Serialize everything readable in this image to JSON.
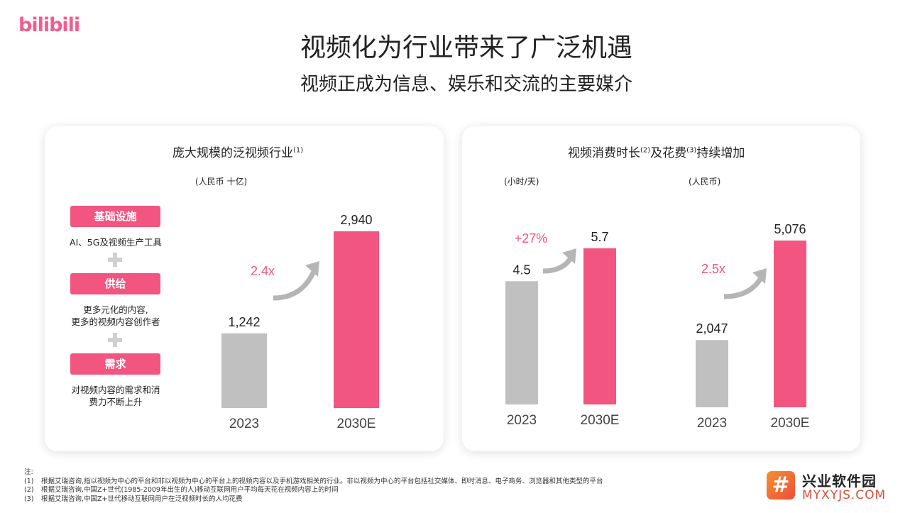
{
  "header": {
    "logo": "bilibili",
    "title": "视频化为行业带来了广泛机遇",
    "subtitle": "视频正成为信息、娱乐和交流的主要媒介"
  },
  "left_card": {
    "title": "庞大规模的泛视频行业",
    "title_note": "(1)",
    "unit": "(人民币 十亿)",
    "drivers": [
      {
        "label": "基础设施",
        "desc": "AI、5G及视频生产工具"
      },
      {
        "label": "供给",
        "desc": "更多元化的内容,\n更多的视频内容创作者"
      },
      {
        "label": "需求",
        "desc": "对视频内容的需求和消\n费力不断上升"
      }
    ]
  },
  "right_card": {
    "title_part1": "视频消费时长",
    "title_note1": "(2)",
    "title_part2": "及花费",
    "title_note2": "(3)",
    "title_part3": "持续增加",
    "unit_hours": "(小时/天)",
    "unit_rmb": "(人民币)"
  },
  "colors": {
    "accent": "#f2557f",
    "bar_grey": "#c0c0c0",
    "arrow_grey": "#b5b5b5",
    "brand": "#f25d8e"
  },
  "chart_data": [
    {
      "type": "bar",
      "categories": [
        "2023",
        "2030E"
      ],
      "values": [
        1242,
        2940
      ],
      "value_labels": [
        "1,242",
        "2,940"
      ],
      "growth_label": "2.4x",
      "ylabel": "(人民币 十亿)"
    },
    {
      "type": "bar",
      "categories": [
        "2023",
        "2030E"
      ],
      "values": [
        4.5,
        5.7
      ],
      "value_labels": [
        "4.5",
        "5.7"
      ],
      "growth_label": "+27%",
      "ylabel": "(小时/天)"
    },
    {
      "type": "bar",
      "categories": [
        "2023",
        "2030E"
      ],
      "values": [
        2047,
        5076
      ],
      "value_labels": [
        "2,047",
        "5,076"
      ],
      "growth_label": "2.5x",
      "ylabel": "(人民币)"
    }
  ],
  "notes": {
    "heading": "注:",
    "items": [
      {
        "num": "(1)",
        "text": "根据艾瑞咨询,指以视频为中心的平台和非以视频为中心的平台上的视频内容以及手机游戏相关的行业。非以视频为中心的平台包括社交媒体、即时消息、电子商务、浏览器和其他类型的平台"
      },
      {
        "num": "(2)",
        "text": "根据艾瑞咨询,中国Z+世代(1985-2009年出生的人)移动互联网用户平均每天花在视频内容上的时间"
      },
      {
        "num": "(3)",
        "text": "根据艾瑞咨询,中国Z+世代移动互联网用户在泛视频时长的人均花费"
      }
    ]
  },
  "watermark": {
    "icon_text": "#",
    "line1": "兴业软件园",
    "line2": "MYXYJS.COM"
  }
}
